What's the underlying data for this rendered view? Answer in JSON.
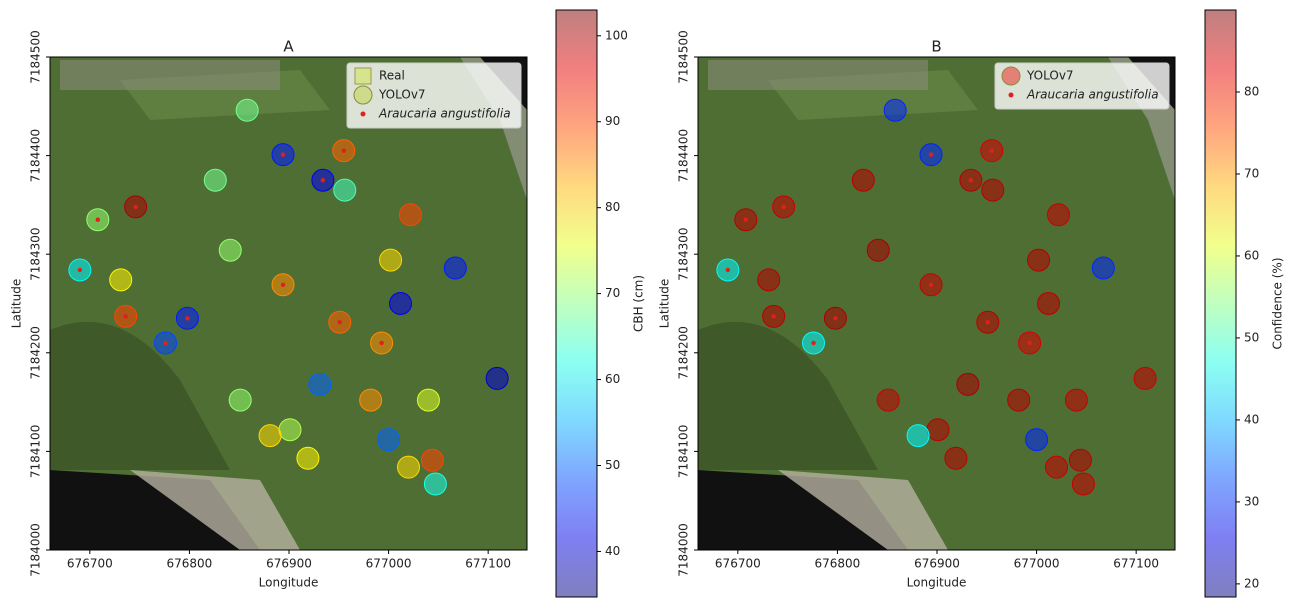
{
  "chart_data": [
    {
      "type": "scatter",
      "title": "A",
      "x_label": "Longitude",
      "y_label": "Latitude",
      "xlim": [
        676660,
        677139
      ],
      "ylim": [
        7184000,
        7184500
      ],
      "xticks": [
        676700,
        676800,
        676900,
        677000,
        677100
      ],
      "yticks": [
        7184000,
        7184100,
        7184200,
        7184300,
        7184400,
        7184500
      ],
      "colorbar": {
        "label": "CBH (cm)",
        "colormap": "jet",
        "lim": [
          34.7,
          103
        ],
        "ticks": [
          40,
          50,
          60,
          70,
          80,
          90,
          100
        ]
      },
      "legend": "upper right",
      "series": [
        {
          "name": "Real",
          "color": "#d4e67a",
          "marker": "square",
          "x": [],
          "y": []
        },
        {
          "name": "YOLOv7",
          "color": "#c8d86a",
          "marker": "circle",
          "x": [
            676746,
            676894,
            676934,
            676955,
            676708,
            676690,
            676736,
            676776,
            676798,
            676894,
            676951,
            676993,
            677012,
            677067,
            677109,
            677044,
            677020,
            676919,
            676931,
            676851,
            676901,
            677000,
            677040,
            676826,
            676858,
            676956,
            677022,
            677002,
            676841,
            676731,
            677047,
            676881,
            676982
          ],
          "y": [
            7184348,
            7184401,
            7184375,
            7184405,
            7184335,
            7184284,
            7184237,
            7184210,
            7184235,
            7184269,
            7184231,
            7184210,
            7184250,
            7184286,
            7184174,
            7184091,
            7184084,
            7184093,
            7184168,
            7184152,
            7184122,
            7184112,
            7184152,
            7184375,
            7184446,
            7184365,
            7184340,
            7184294,
            7184304,
            7184274,
            7184067,
            7184116,
            7184152
          ],
          "values": [
            100,
            45,
            42,
            88,
            70,
            60,
            90,
            48,
            45,
            85,
            88,
            85,
            42,
            45,
            40,
            90,
            80,
            78,
            50,
            70,
            72,
            50,
            75,
            68,
            68,
            65,
            90,
            80,
            70,
            78,
            62,
            80,
            85
          ]
        },
        {
          "name": "Araucaria angustifolia",
          "color": "#e0201b",
          "marker": "dot",
          "x": [
            676746,
            676894,
            676934,
            676955,
            676708,
            676690,
            676736,
            676776,
            676798,
            676894,
            676951,
            676993
          ],
          "y": [
            7184348,
            7184401,
            7184375,
            7184405,
            7184335,
            7184284,
            7184237,
            7184210,
            7184235,
            7184269,
            7184231,
            7184210
          ]
        }
      ]
    },
    {
      "type": "scatter",
      "title": "B",
      "x_label": "Longitude",
      "y_label": "Latitude",
      "xlim": [
        676660,
        677139
      ],
      "ylim": [
        7184000,
        7184500
      ],
      "xticks": [
        676700,
        676800,
        676900,
        677000,
        677100
      ],
      "yticks": [
        7184000,
        7184100,
        7184200,
        7184300,
        7184400,
        7184500
      ],
      "colorbar": {
        "label": "Confidence (%)",
        "colormap": "jet",
        "lim": [
          18.4,
          90
        ],
        "ticks": [
          20,
          30,
          40,
          50,
          60,
          70,
          80
        ]
      },
      "legend": "upper right",
      "series": [
        {
          "name": "YOLOv7",
          "color": "#e8584a",
          "marker": "circle",
          "x": [
            676746,
            676894,
            676934,
            676955,
            676708,
            676690,
            676736,
            676776,
            676798,
            676894,
            676951,
            676993,
            677012,
            677067,
            677109,
            677044,
            677020,
            676919,
            676931,
            676851,
            676901,
            677000,
            677040,
            676826,
            676858,
            676956,
            677022,
            677002,
            676841,
            676731,
            677047,
            676881,
            676982
          ],
          "y": [
            7184348,
            7184401,
            7184375,
            7184405,
            7184335,
            7184284,
            7184237,
            7184210,
            7184235,
            7184269,
            7184231,
            7184210,
            7184250,
            7184286,
            7184174,
            7184091,
            7184084,
            7184093,
            7184168,
            7184152,
            7184122,
            7184112,
            7184152,
            7184375,
            7184446,
            7184365,
            7184340,
            7184294,
            7184304,
            7184274,
            7184067,
            7184116,
            7184152
          ],
          "values": [
            85,
            30,
            86,
            84,
            86,
            45,
            86,
            45,
            87,
            85,
            86,
            84,
            86,
            30,
            85,
            86,
            85,
            86,
            87,
            85,
            86,
            30,
            85,
            86,
            30,
            86,
            85,
            86,
            87,
            86,
            85,
            45,
            86
          ]
        },
        {
          "name": "Araucaria angustifolia",
          "color": "#e0201b",
          "marker": "dot",
          "x": [
            676746,
            676894,
            676934,
            676955,
            676708,
            676690,
            676736,
            676776,
            676798,
            676894,
            676951,
            676993
          ],
          "y": [
            7184348,
            7184401,
            7184375,
            7184405,
            7184335,
            7184284,
            7184237,
            7184210,
            7184235,
            7184269,
            7184231,
            7184210
          ]
        }
      ]
    }
  ]
}
